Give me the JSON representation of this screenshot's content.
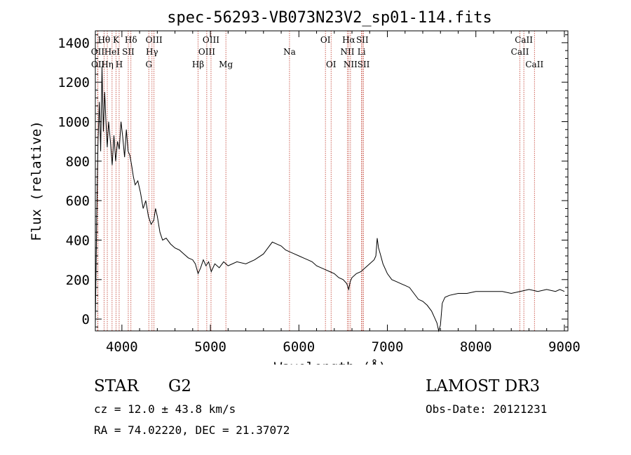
{
  "chart_data": {
    "type": "line",
    "title": "spec-56293-VB073N23V2_sp01-114.fits",
    "xlabel": "Wavelength (Å)",
    "ylabel": "Flux (relative)",
    "xlim": [
      3700,
      9040
    ],
    "ylim": [
      -60,
      1460
    ],
    "xticks": [
      4000,
      5000,
      6000,
      7000,
      8000,
      9000
    ],
    "yticks": [
      0,
      200,
      400,
      600,
      800,
      1000,
      1200,
      1400
    ],
    "spectrum": {
      "x": [
        3700,
        3715,
        3730,
        3745,
        3760,
        3775,
        3790,
        3805,
        3820,
        3835,
        3850,
        3870,
        3890,
        3910,
        3930,
        3950,
        3970,
        3990,
        4010,
        4030,
        4050,
        4070,
        4090,
        4110,
        4130,
        4150,
        4180,
        4210,
        4240,
        4270,
        4300,
        4330,
        4360,
        4380,
        4400,
        4430,
        4460,
        4500,
        4550,
        4600,
        4650,
        4700,
        4750,
        4800,
        4830,
        4861,
        4890,
        4920,
        4950,
        4980,
        5010,
        5050,
        5100,
        5150,
        5200,
        5300,
        5400,
        5500,
        5600,
        5650,
        5700,
        5750,
        5800,
        5850,
        5900,
        5950,
        6000,
        6050,
        6100,
        6150,
        6200,
        6250,
        6300,
        6350,
        6400,
        6450,
        6500,
        6540,
        6563,
        6580,
        6600,
        6650,
        6700,
        6750,
        6800,
        6850,
        6870,
        6885,
        6900,
        6920,
        6950,
        7000,
        7050,
        7100,
        7150,
        7200,
        7250,
        7300,
        7350,
        7400,
        7450,
        7500,
        7540,
        7560,
        7580,
        7600,
        7620,
        7650,
        7700,
        7800,
        7900,
        8000,
        8100,
        8200,
        8300,
        8400,
        8500,
        8600,
        8700,
        8800,
        8900,
        8950,
        9000
      ],
      "y": [
        -20,
        500,
        900,
        1100,
        850,
        1280,
        950,
        1150,
        1000,
        870,
        1000,
        900,
        780,
        930,
        800,
        900,
        860,
        1000,
        920,
        820,
        960,
        850,
        830,
        780,
        720,
        680,
        700,
        640,
        560,
        600,
        520,
        480,
        500,
        560,
        520,
        440,
        400,
        410,
        380,
        360,
        350,
        330,
        310,
        300,
        280,
        230,
        260,
        300,
        270,
        290,
        240,
        280,
        260,
        290,
        270,
        290,
        280,
        300,
        330,
        360,
        390,
        380,
        370,
        350,
        340,
        330,
        320,
        310,
        300,
        290,
        270,
        260,
        250,
        240,
        230,
        210,
        200,
        180,
        150,
        190,
        210,
        230,
        240,
        260,
        280,
        300,
        320,
        410,
        360,
        330,
        280,
        230,
        200,
        190,
        180,
        170,
        160,
        130,
        100,
        90,
        70,
        40,
        0,
        -20,
        -60,
        -30,
        80,
        110,
        120,
        130,
        130,
        140,
        140,
        140,
        140,
        130,
        140,
        150,
        140,
        150,
        140,
        150,
        140
      ]
    },
    "lines": [
      {
        "label": "Hθ",
        "x": 3798,
        "row": 1
      },
      {
        "label": "OII",
        "x": 3727,
        "row": 2
      },
      {
        "label": "OII",
        "x": 3729,
        "row": 3
      },
      {
        "label": "Hη",
        "x": 3835,
        "row": 3
      },
      {
        "label": "HeI",
        "x": 3889,
        "row": 2
      },
      {
        "label": "K",
        "x": 3934,
        "row": 1
      },
      {
        "label": "H",
        "x": 3969,
        "row": 3
      },
      {
        "label": "SII",
        "x": 4072,
        "row": 2
      },
      {
        "label": "Hδ",
        "x": 4102,
        "row": 1
      },
      {
        "label": "OIII",
        "x": 4363,
        "row": 1
      },
      {
        "label": "Hγ",
        "x": 4340,
        "row": 2
      },
      {
        "label": "G",
        "x": 4304,
        "row": 3
      },
      {
        "label": "Hβ",
        "x": 4861,
        "row": 3
      },
      {
        "label": "OIII",
        "x": 5007,
        "row": 1
      },
      {
        "label": "OIII",
        "x": 4959,
        "row": 2
      },
      {
        "label": "Mg",
        "x": 5175,
        "row": 3
      },
      {
        "label": "Na",
        "x": 5894,
        "row": 2
      },
      {
        "label": "OI",
        "x": 6300,
        "row": 1
      },
      {
        "label": "OI",
        "x": 6364,
        "row": 3
      },
      {
        "label": "Hα",
        "x": 6563,
        "row": 1
      },
      {
        "label": "NII",
        "x": 6548,
        "row": 2
      },
      {
        "label": "NII",
        "x": 6583,
        "row": 3
      },
      {
        "label": "SII",
        "x": 6717,
        "row": 1
      },
      {
        "label": "Li",
        "x": 6708,
        "row": 2
      },
      {
        "label": "SII",
        "x": 6731,
        "row": 3
      },
      {
        "label": "CaII",
        "x": 8542,
        "row": 1
      },
      {
        "label": "CaII",
        "x": 8498,
        "row": 2
      },
      {
        "label": "CaII",
        "x": 8662,
        "row": 3
      }
    ]
  },
  "info": {
    "class": "STAR",
    "subclass": "G2",
    "survey": "LAMOST DR3",
    "cz": "cz = 12.0 ± 43.8 km/s",
    "obs_date": "Obs-Date: 20121231",
    "coords": "RA =  74.02220, DEC =  21.37072"
  },
  "colors": {
    "line_marker": "#c0392b",
    "ink": "#000000"
  }
}
